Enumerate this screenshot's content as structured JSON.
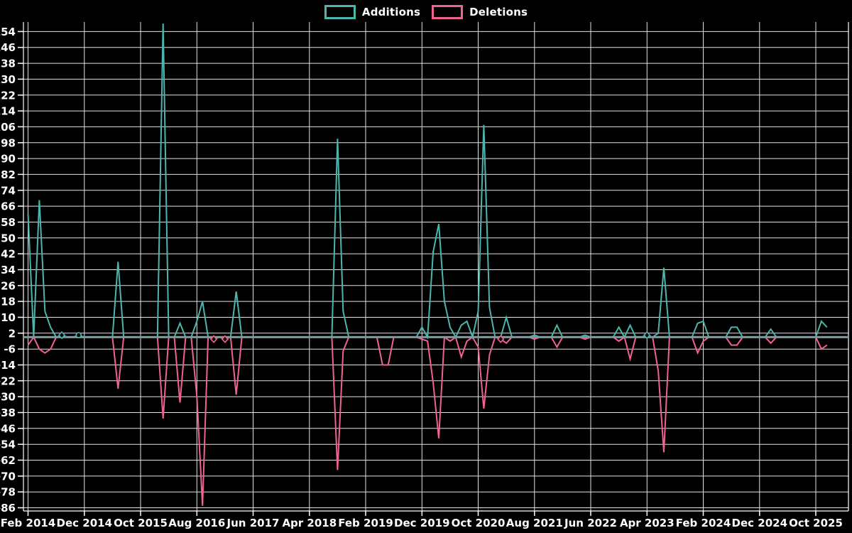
{
  "legend": {
    "items": [
      {
        "label": "Additions"
      },
      {
        "label": "Deletions"
      }
    ]
  },
  "chart_data": {
    "type": "line",
    "title": "",
    "xlabel": "",
    "ylabel": "",
    "grid": true,
    "legend_position": "top-center",
    "x_axis": {
      "start_month": "2014-02",
      "end_month": "2025-12",
      "months_per_tick": 10,
      "tick_labels": [
        "Feb 2014",
        "Dec 2014",
        "Oct 2015",
        "Aug 2016",
        "Jun 2017",
        "Apr 2018",
        "Feb 2019",
        "Dec 2019",
        "Oct 2020",
        "Aug 2021",
        "Jun 2022",
        "Apr 2023",
        "Feb 2024",
        "Dec 2024",
        "Oct 2025"
      ]
    },
    "y_axis": {
      "ticks": [
        154,
        146,
        138,
        130,
        122,
        114,
        106,
        98,
        90,
        82,
        74,
        66,
        58,
        50,
        42,
        34,
        26,
        18,
        10,
        2,
        -6,
        -14,
        -22,
        -30,
        -38,
        -46,
        -54,
        -62,
        -70,
        -78,
        -86
      ],
      "range_min": -87.6,
      "range_max": 158.8
    },
    "default_value": 0,
    "series": [
      {
        "name": "Additions",
        "color": "#4db6ac",
        "points": {
          "2014-02": 62,
          "2014-04": 69,
          "2014-05": 13,
          "2014-06": 5,
          "2014-08": 1,
          "2014-11": 1,
          "2015-06": 38,
          "2016-02": 158,
          "2016-05": 7,
          "2016-08": 8,
          "2016-09": 18,
          "2017-03": 23,
          "2018-09": 100,
          "2018-10": 13,
          "2019-12": 5,
          "2020-02": 43,
          "2020-03": 57,
          "2020-04": 18,
          "2020-05": 5,
          "2020-07": 6,
          "2020-08": 8,
          "2020-10": 13,
          "2020-11": 107,
          "2020-12": 15,
          "2021-03": 10,
          "2021-08": 1,
          "2021-12": 6,
          "2022-05": 1,
          "2022-11": 5,
          "2023-01": 6,
          "2023-04": 1,
          "2023-06": 2,
          "2023-07": 35,
          "2024-01": 7,
          "2024-02": 8,
          "2024-07": 5,
          "2024-08": 5,
          "2025-02": 4,
          "2025-11": 8,
          "2025-12": 5
        }
      },
      {
        "name": "Deletions",
        "color": "#f06292",
        "points": {
          "2014-02": -4,
          "2014-04": -6,
          "2014-05": -8,
          "2014-06": -6,
          "2015-06": -26,
          "2016-02": -41,
          "2016-05": -33,
          "2016-08": -30,
          "2016-09": -85,
          "2016-11": -1,
          "2017-01": -1,
          "2017-03": -29,
          "2018-09": -67,
          "2018-10": -7,
          "2019-05": -14,
          "2019-06": -14,
          "2019-12": -1,
          "2020-01": -2,
          "2020-02": -23,
          "2020-03": -51,
          "2020-05": -2,
          "2020-07": -10,
          "2020-08": -2,
          "2020-10": -5,
          "2020-11": -36,
          "2020-12": -9,
          "2021-02": -1,
          "2021-03": -3,
          "2021-08": -1,
          "2021-12": -5,
          "2022-05": -1,
          "2022-11": -2,
          "2023-01": -11,
          "2023-06": -17,
          "2023-07": -58,
          "2024-01": -8,
          "2024-02": -2,
          "2024-07": -4,
          "2024-08": -4,
          "2025-02": -3,
          "2025-11": -6,
          "2025-12": -4
        }
      }
    ],
    "isolated_markers": [
      {
        "series": 0,
        "month": "2014-08",
        "shape": "diamond"
      },
      {
        "series": 0,
        "month": "2014-11",
        "shape": "circle"
      },
      {
        "series": 1,
        "month": "2016-11",
        "shape": "diamond"
      },
      {
        "series": 1,
        "month": "2017-01",
        "shape": "diamond"
      },
      {
        "series": 1,
        "month": "2021-02",
        "shape": "diamond"
      },
      {
        "series": 0,
        "month": "2023-04",
        "shape": "diamond"
      }
    ],
    "colors": {
      "background": "#000000",
      "grid": "#e3e3e3",
      "axis": "#ffffff",
      "text": "#ffffff",
      "zero_line": "#7c9aa4"
    }
  }
}
